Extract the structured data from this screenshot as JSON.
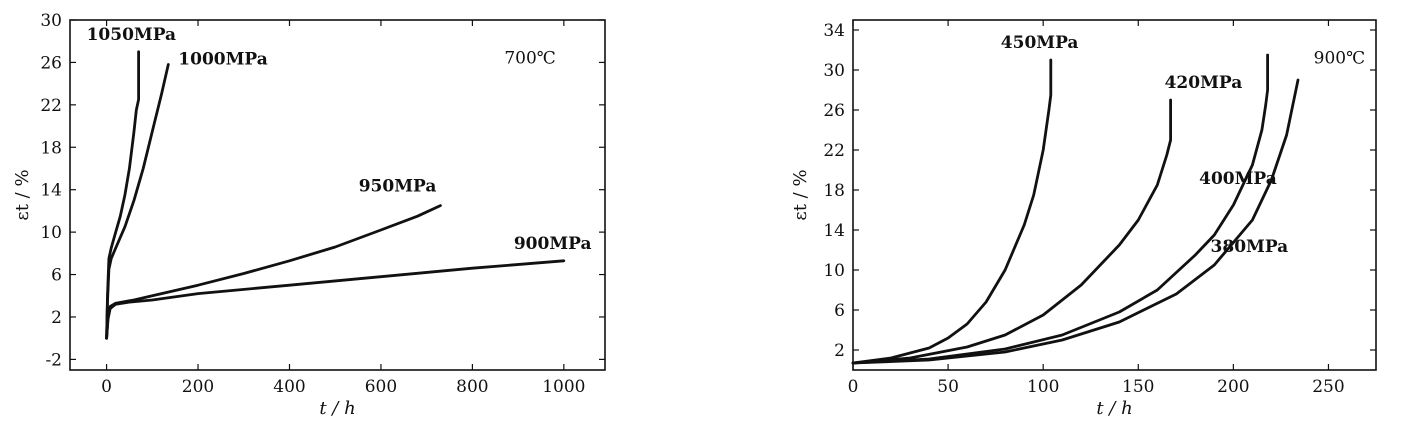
{
  "chart_data": [
    {
      "type": "line",
      "title": "",
      "annotation": "700℃",
      "xlabel": "t / h",
      "ylabel": "εt / %",
      "xlim": [
        -80,
        1090
      ],
      "ylim": [
        -3,
        30
      ],
      "xticks": [
        0,
        200,
        400,
        600,
        800,
        1000
      ],
      "yticks": [
        -2,
        2,
        6,
        10,
        14,
        18,
        22,
        26,
        30
      ],
      "grid": false,
      "series": [
        {
          "name": "1050MPa",
          "x": [
            0,
            2,
            5,
            10,
            20,
            30,
            40,
            50,
            60,
            65,
            70,
            70
          ],
          "y": [
            0,
            4,
            7.5,
            8.5,
            10,
            11.5,
            13.5,
            16,
            19.5,
            21.5,
            22.5,
            27
          ]
        },
        {
          "name": "1000MPa",
          "x": [
            0,
            2,
            5,
            10,
            20,
            40,
            60,
            80,
            100,
            120,
            135
          ],
          "y": [
            0,
            3.5,
            6.5,
            7.5,
            8.5,
            10.5,
            13,
            16,
            19.5,
            23,
            25.8
          ]
        },
        {
          "name": "950MPa",
          "x": [
            0,
            3,
            8,
            20,
            60,
            100,
            200,
            300,
            400,
            500,
            600,
            680,
            730
          ],
          "y": [
            0,
            2,
            3,
            3.3,
            3.6,
            4,
            5,
            6.1,
            7.3,
            8.6,
            10.2,
            11.5,
            12.5
          ]
        },
        {
          "name": "900MPa",
          "x": [
            0,
            3,
            8,
            20,
            50,
            100,
            200,
            400,
            600,
            800,
            1000
          ],
          "y": [
            0,
            1.8,
            2.8,
            3.2,
            3.4,
            3.6,
            4.2,
            5,
            5.8,
            6.6,
            7.3
          ]
        }
      ]
    },
    {
      "type": "line",
      "title": "",
      "annotation": "900℃",
      "xlabel": "t / h",
      "ylabel": "εt / %",
      "xlim": [
        0,
        275
      ],
      "ylim": [
        0,
        35
      ],
      "xticks": [
        0,
        50,
        100,
        150,
        200,
        250
      ],
      "yticks": [
        2,
        6,
        10,
        14,
        18,
        22,
        26,
        30,
        34
      ],
      "grid": false,
      "series": [
        {
          "name": "450MPa",
          "x": [
            0,
            20,
            40,
            50,
            60,
            70,
            80,
            90,
            95,
            100,
            103,
            104,
            104
          ],
          "y": [
            0.7,
            1.2,
            2.2,
            3.2,
            4.6,
            6.8,
            10,
            14.5,
            17.5,
            22,
            26,
            27.5,
            31
          ]
        },
        {
          "name": "420MPa",
          "x": [
            0,
            30,
            60,
            80,
            100,
            120,
            140,
            150,
            160,
            165,
            167,
            167
          ],
          "y": [
            0.7,
            1.2,
            2.3,
            3.5,
            5.5,
            8.5,
            12.5,
            15,
            18.5,
            21.5,
            23,
            27
          ]
        },
        {
          "name": "400MPa",
          "x": [
            0,
            40,
            80,
            110,
            140,
            160,
            180,
            190,
            200,
            210,
            215,
            217,
            218,
            218
          ],
          "y": [
            0.7,
            1.1,
            2.1,
            3.5,
            5.8,
            8,
            11.5,
            13.5,
            16.5,
            20.5,
            24,
            26.5,
            28,
            31.5
          ]
        },
        {
          "name": "380MPa",
          "x": [
            0,
            40,
            80,
            110,
            140,
            170,
            190,
            210,
            220,
            228,
            234
          ],
          "y": [
            0.7,
            1,
            1.8,
            3,
            4.8,
            7.6,
            10.5,
            15,
            19,
            23.5,
            29
          ]
        }
      ]
    }
  ]
}
